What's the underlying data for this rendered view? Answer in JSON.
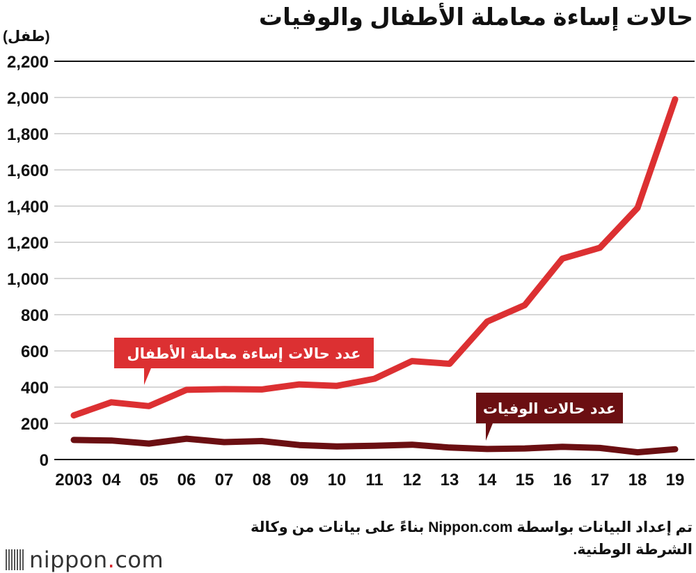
{
  "header": {
    "title": "حالات إساءة معاملة الأطفال والوفيات",
    "unit": "(طفل)"
  },
  "colors": {
    "abuse": "#dc3032",
    "deaths": "#6b0f12",
    "grid": "#c8c8c8",
    "axis": "#111111"
  },
  "chart_data": {
    "type": "line",
    "title": "حالات إساءة معاملة الأطفال والوفيات",
    "ylabel": "(طفل)",
    "xlabel": "",
    "x": [
      "2003",
      "04",
      "05",
      "06",
      "07",
      "08",
      "09",
      "10",
      "11",
      "12",
      "13",
      "14",
      "15",
      "16",
      "17",
      "18",
      "19"
    ],
    "ylim": [
      0,
      2200
    ],
    "yticks": [
      0,
      200,
      400,
      600,
      800,
      1000,
      1200,
      1400,
      1600,
      1800,
      2000,
      2200
    ],
    "ytick_labels": [
      "0",
      "200",
      "400",
      "600",
      "800",
      "1,000",
      "1,200",
      "1,400",
      "1,600",
      "1,800",
      "2,000",
      "2,200"
    ],
    "grid": true,
    "series": [
      {
        "name": "عدد حالات إساءة معاملة الأطفال",
        "color": "#dc3032",
        "values": [
          244,
          316,
          295,
          385,
          389,
          387,
          415,
          407,
          446,
          544,
          529,
          762,
          853,
          1110,
          1170,
          1390,
          1990
        ]
      },
      {
        "name": "عدد حالات الوفيات",
        "color": "#6b0f12",
        "values": [
          108,
          105,
          88,
          115,
          96,
          102,
          80,
          72,
          76,
          82,
          66,
          58,
          61,
          70,
          64,
          40,
          57
        ]
      }
    ]
  },
  "footer": {
    "source": "تم إعداد البيانات بواسطة Nippon.com بناءً على بيانات من وكالة الشرطة الوطنية.",
    "logo_text": "nippon",
    "logo_suffix": "com"
  }
}
